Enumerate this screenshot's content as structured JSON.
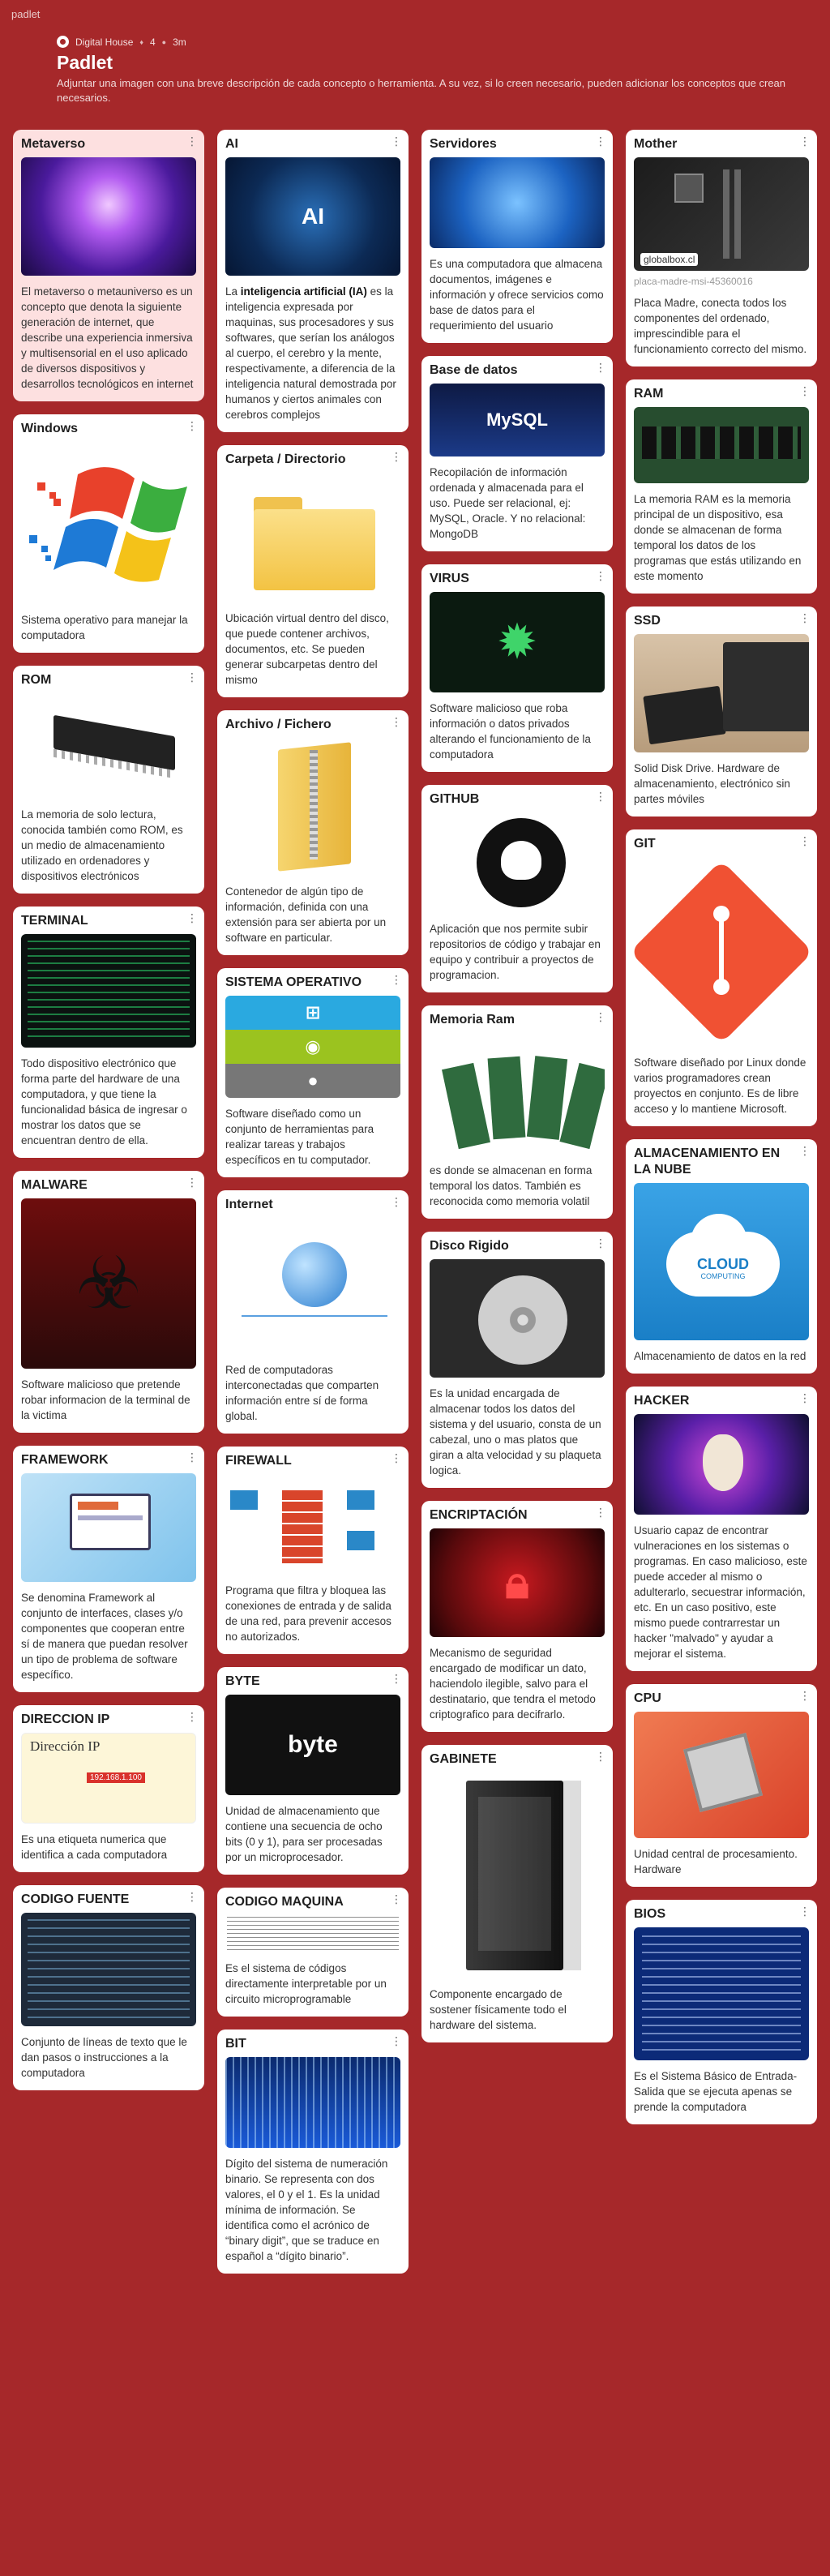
{
  "brand": "padlet",
  "header": {
    "author": "Digital House",
    "likes": "4",
    "time": "3m",
    "title": "Padlet",
    "description": "Adjuntar una imagen con una breve descripción de cada concepto o herramienta. A su vez, si lo creen necesario, pueden adicionar los conceptos que crean necesarios."
  },
  "cards": {
    "metaverso": {
      "title": "Metaverso",
      "body": "El metaverso o metauniverso es un concepto que denota la siguiente generación de internet,  que describe una experiencia inmersiva y multisensorial en el uso aplicado de diversos dispositivos y desarrollos tecnológicos en internet"
    },
    "windows": {
      "title": "Windows",
      "body": "Sistema operativo para manejar la computadora"
    },
    "rom": {
      "title": "ROM",
      "body": "La memoria de solo lectura, conocida también como ROM, es un medio de almacenamiento utilizado en ordenadores y dispositivos electrónicos"
    },
    "terminal": {
      "title": "TERMINAL",
      "body": "Todo dispositivo electrónico que forma parte del hardware de una computadora, y que tiene la funcionalidad básica de ingresar o mostrar los datos que se encuentran dentro de ella."
    },
    "malware": {
      "title": "MALWARE",
      "body": "Software malicioso que pretende robar informacion de la terminal de la victima"
    },
    "framework": {
      "title": "FRAMEWORK",
      "body": "Se denomina Framework al conjunto de interfaces, clases y/o componentes que cooperan entre sí de manera que puedan resolver un tipo de problema de software específico."
    },
    "direccion_ip": {
      "title": "DIRECCION IP",
      "img_title": "Dirección IP",
      "img_subtitle": "192.168.1.100",
      "body": "Es una etiqueta numerica que identifica a cada computadora"
    },
    "codigo_fuente": {
      "title": "CODIGO FUENTE",
      "body": "Conjunto de líneas de texto que le dan pasos o instrucciones a la computadora"
    },
    "ai": {
      "title": "AI",
      "body_pre": "La ",
      "body_bold": "inteligencia artificial (IA)",
      "body_post": " es la inteligencia expresada por maquinas, sus procesadores y sus softwares, que serían los análogos al cuerpo, el cerebro y la mente, respectivamente, a diferencia de la inteligencia natural demostrada por humanos y ciertos animales con cerebros complejos"
    },
    "carpeta": {
      "title": "Carpeta / Directorio",
      "body": "Ubicación virtual dentro del disco, que puede contener archivos, documentos, etc. Se pueden generar subcarpetas dentro del mismo"
    },
    "archivo": {
      "title": "Archivo / Fichero",
      "body": "Contenedor de algún tipo de información, definida con una extensión para ser abierta por un software en particular."
    },
    "sistema_operativo": {
      "title": "SISTEMA OPERATIVO",
      "body": "Software diseñado como un conjunto de herramientas para realizar tareas y trabajos específicos en tu computador."
    },
    "internet": {
      "title": "Internet",
      "body": "Red de computadoras interconectadas que comparten información entre sí de forma global."
    },
    "firewall": {
      "title": "FIREWALL",
      "body": "Programa que filtra y bloquea las conexiones de entrada y de salida de una red, para prevenir accesos no autorizados."
    },
    "byte": {
      "title": "BYTE",
      "img_text": "byte",
      "body": "Unidad de almacenamiento que contiene una secuencia de ocho bits (0 y 1), para ser procesadas por un microprocesador."
    },
    "codigo_maquina": {
      "title": "CODIGO MAQUINA",
      "body": "Es el sistema de códigos directamente interpretable por un circuito microprogramable"
    },
    "bit": {
      "title": "BIT",
      "body": "Dígito del sistema de numeración binario. Se representa con dos valores, el 0 y el 1. Es la unidad mínima de información. Se identifica como el acrónico de “binary digit”, que se traduce en español a “dígito binario”."
    },
    "servidores": {
      "title": "Servidores",
      "body": "Es una computadora que almacena documentos, imágenes e información y ofrece servicios como base de datos para el requerimiento del usuario"
    },
    "base_datos": {
      "title": "Base de datos",
      "img_text": "MySQL",
      "body": "Recopilación de información ordenada y almacenada para el uso. Puede ser relacional, ej: MySQL, Oracle. Y no relacional: MongoDB"
    },
    "virus": {
      "title": "VIRUS",
      "body": "Software malicioso que roba información o datos privados alterando el funcionamiento de la computadora"
    },
    "github": {
      "title": "GITHUB",
      "body": "Aplicación que nos permite subir repositorios de código y trabajar en equipo y contribuir a proyectos de programacion."
    },
    "memoria_ram": {
      "title": "Memoria Ram",
      "body": "es donde se almacenan en forma temporal los datos. También es reconocida como memoria volatil"
    },
    "disco_rigido": {
      "title": "Disco Rigido",
      "body": "Es la unidad encargada de almacenar todos los datos del sistema y del usuario, consta de un cabezal, uno o mas platos que giran a alta velocidad y su plaqueta logica."
    },
    "encriptacion": {
      "title": "ENCRIPTACIÓN",
      "body": "Mecanismo de seguridad encargado de modificar un dato, haciendolo ilegible, salvo para el destinatario, que tendra el metodo criptografico para decifrarlo."
    },
    "gabinete": {
      "title": "GABINETE",
      "body": "Componente encargado de sostener físicamente todo el hardware del sistema."
    },
    "mother": {
      "title": "Mother",
      "img_tag": "globalbox.cl",
      "link_meta": "placa-madre-msi-45360016",
      "body": "Placa Madre, conecta todos los componentes del ordenado, imprescindible para el funcionamiento correcto del mismo."
    },
    "ram": {
      "title": "RAM",
      "body": "La memoria RAM es la memoria principal de un dispositivo, esa donde se almacenan de forma temporal los datos de los programas que estás utilizando en este momento"
    },
    "ssd": {
      "title": "SSD",
      "body": "Solid Disk Drive. Hardware de almacenamiento, electrónico sin partes móviles"
    },
    "git": {
      "title": "GIT",
      "body": "Software diseñado por Linux donde varios programadores crean proyectos en conjunto. Es de libre acceso y lo mantiene Microsoft."
    },
    "almacenamiento": {
      "title": "ALMACENAMIENTO EN LA NUBE",
      "img_text": "CLOUD",
      "img_subtext": "COMPUTING",
      "body": "Almacenamiento de datos en la red"
    },
    "hacker": {
      "title": "HACKER",
      "body": "Usuario capaz de encontrar vulneraciones en los sistemas o programas. En caso malicioso, este puede acceder al mismo o adulterarlo, secuestrar información, etc. En un caso positivo, este mismo puede contrarrestar un hacker \"malvado\" y ayudar a mejorar el sistema."
    },
    "cpu": {
      "title": "CPU",
      "body": "Unidad central de procesamiento. Hardware"
    },
    "bios": {
      "title": "BIOS",
      "body": "Es el Sistema Básico de Entrada-Salida que se ejecuta apenas se prende la computadora"
    }
  },
  "more_icon": "⋮"
}
